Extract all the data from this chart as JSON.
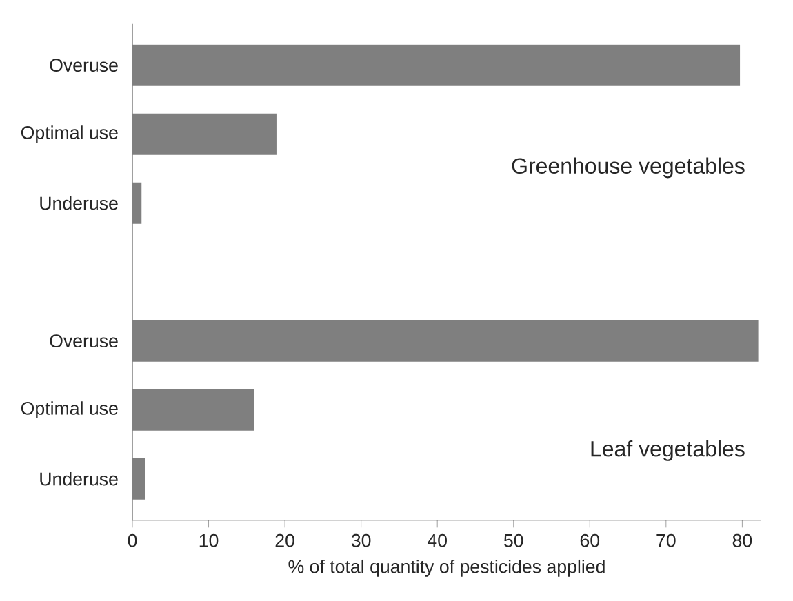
{
  "chart_data": {
    "type": "bar",
    "orientation": "horizontal",
    "xlabel": "% of total quantity of pesticides applied",
    "categories": [
      "Overuse",
      "Optimal use",
      "Underuse",
      null,
      "Overuse",
      "Optimal use",
      "Underuse"
    ],
    "values": [
      79.7,
      18.9,
      1.2,
      null,
      82.1,
      16.0,
      1.7
    ],
    "color": "#7f7f7f",
    "xlim": [
      0,
      82.5
    ],
    "xticks": [
      0,
      10,
      20,
      30,
      40,
      50,
      60,
      70,
      80
    ],
    "annotations": [
      "Greenhouse vegetables",
      "Leaf vegetables"
    ]
  }
}
